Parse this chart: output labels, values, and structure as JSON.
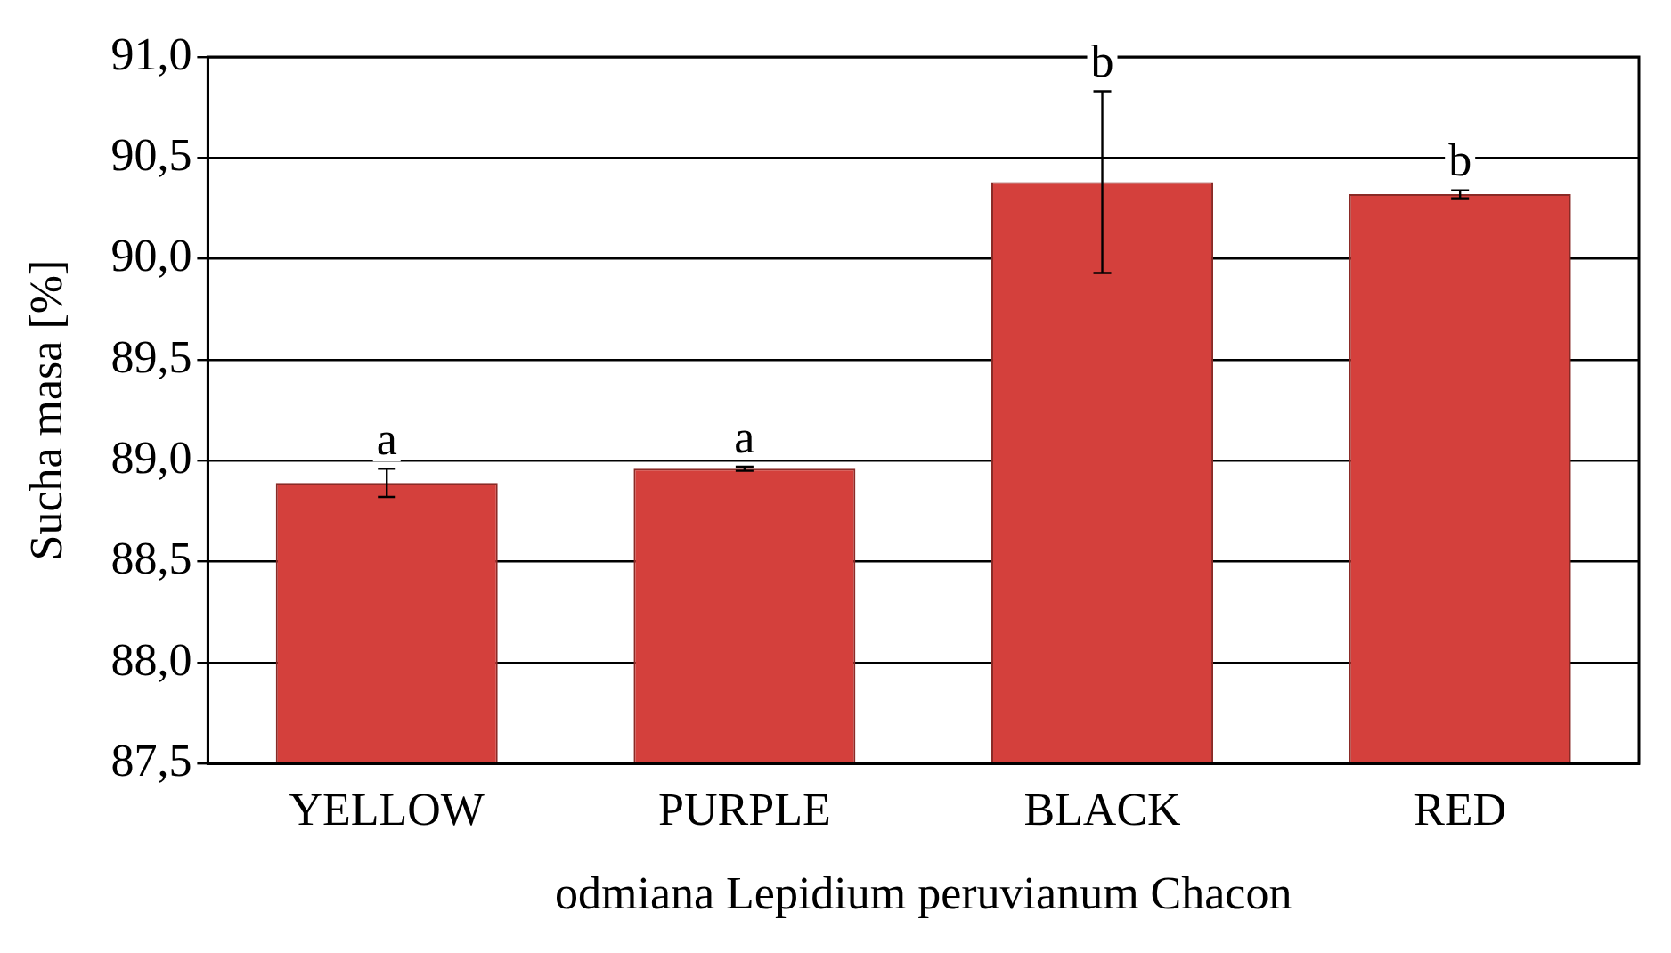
{
  "chart_data": {
    "type": "bar",
    "xlabel": "odmiana Lepidium peruvianum Chacon",
    "ylabel": "Sucha masa [%]",
    "categories": [
      "YELLOW",
      "PURPLE",
      "BLACK",
      "RED"
    ],
    "values": [
      88.89,
      88.96,
      90.38,
      90.32
    ],
    "errors": [
      0.07,
      0.01,
      0.45,
      0.02
    ],
    "color": "#d4403c",
    "ylim": [
      87.5,
      91.0
    ],
    "yticks": [
      {
        "value": 87.5,
        "label": "87,5"
      },
      {
        "value": 88,
        "label": "88,0"
      },
      {
        "value": 88.5,
        "label": "88,5"
      },
      {
        "value": 89,
        "label": "89,0"
      },
      {
        "value": 89.5,
        "label": "89,5"
      },
      {
        "value": 90,
        "label": "90,0"
      },
      {
        "value": 90.5,
        "label": "90,5"
      },
      {
        "value": 91,
        "label": "91,0"
      }
    ],
    "grid": "y",
    "annotations": [
      {
        "text": "a",
        "x": "YELLOW",
        "y": 88.96
      },
      {
        "text": "a",
        "x": "PURPLE",
        "y": 88.97
      },
      {
        "text": "b",
        "x": "BLACK",
        "y": 90.83
      },
      {
        "text": "b",
        "x": "RED",
        "y": 90.34
      }
    ]
  }
}
